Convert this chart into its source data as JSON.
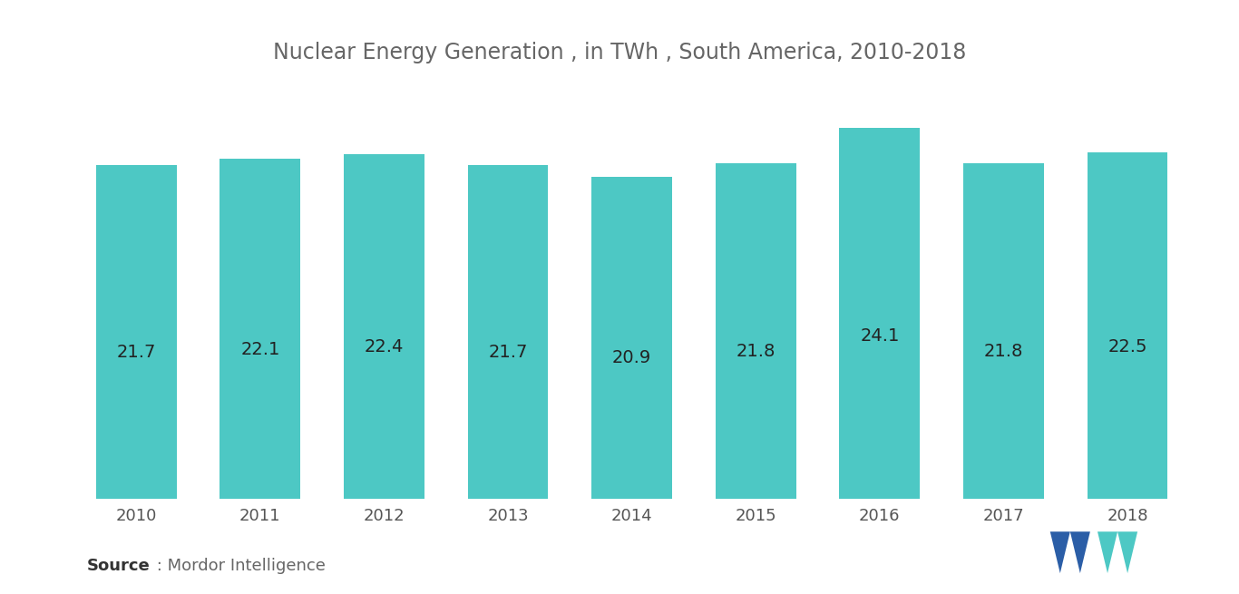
{
  "title": "Nuclear Energy Generation , in TWh , South America, 2010-2018",
  "years": [
    "2010",
    "2011",
    "2012",
    "2013",
    "2014",
    "2015",
    "2016",
    "2017",
    "2018"
  ],
  "values": [
    21.7,
    22.1,
    22.4,
    21.7,
    20.9,
    21.8,
    24.1,
    21.8,
    22.5
  ],
  "bar_color": "#4DC8C4",
  "label_color": "#222222",
  "title_color": "#666666",
  "source_bold": "Source",
  "source_text": " : Mordor Intelligence",
  "background_color": "#ffffff",
  "ylim": [
    0,
    27
  ],
  "bar_width": 0.65,
  "title_fontsize": 17,
  "label_fontsize": 14,
  "tick_fontsize": 13,
  "source_fontsize": 13
}
